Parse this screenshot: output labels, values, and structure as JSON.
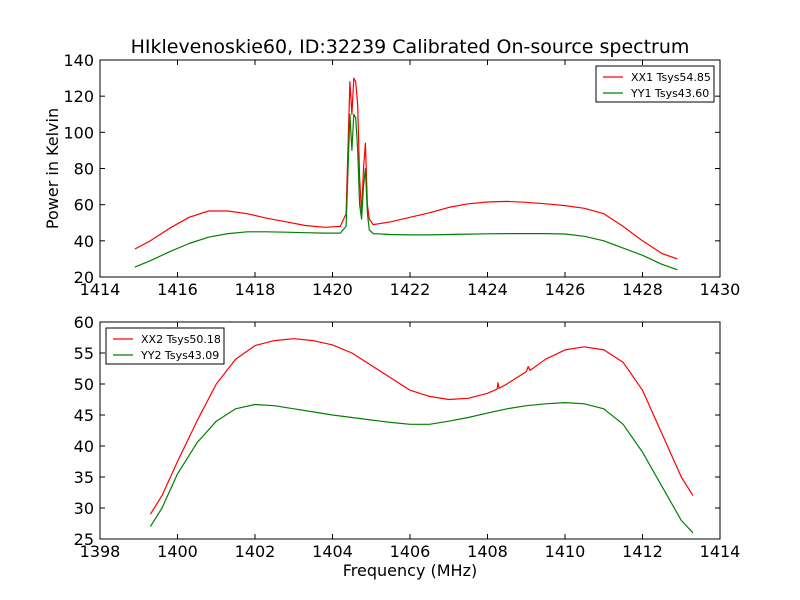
{
  "chart_data": [
    {
      "type": "line",
      "title": "HIklevenoskie60, ID:32239 Calibrated On-source spectrum",
      "xlabel": "",
      "ylabel": "Power in Kelvin",
      "xlim": [
        1414,
        1430
      ],
      "ylim": [
        20,
        140
      ],
      "xticks": [
        1414,
        1416,
        1418,
        1420,
        1422,
        1424,
        1426,
        1428,
        1430
      ],
      "yticks": [
        20,
        40,
        60,
        80,
        100,
        120,
        140
      ],
      "legend_position": "top-right",
      "series": [
        {
          "name": "XX1 Tsys54.85",
          "color": "#ff0000",
          "x": [
            1414.9,
            1415.3,
            1415.8,
            1416.3,
            1416.8,
            1417.3,
            1417.8,
            1418.3,
            1418.8,
            1419.3,
            1419.8,
            1420.2,
            1420.35,
            1420.45,
            1420.5,
            1420.55,
            1420.6,
            1420.65,
            1420.7,
            1420.75,
            1420.8,
            1420.85,
            1420.9,
            1420.95,
            1421.05,
            1421.5,
            1422.0,
            1422.5,
            1423.0,
            1423.5,
            1424.0,
            1424.5,
            1425.0,
            1425.5,
            1426.0,
            1426.5,
            1427.0,
            1427.5,
            1428.0,
            1428.5,
            1428.9
          ],
          "y": [
            35.5,
            40,
            47,
            53,
            56.5,
            56.5,
            55,
            52.5,
            50.5,
            48.5,
            47.5,
            48,
            55,
            128,
            110,
            130,
            128,
            115,
            75,
            55,
            80,
            94,
            60,
            52,
            49,
            50.5,
            53,
            55.5,
            58.5,
            60.5,
            61.5,
            61.8,
            61.3,
            60.5,
            59.5,
            58,
            55,
            48,
            40,
            33,
            30
          ]
        },
        {
          "name": "YY1 Tsys43.60",
          "color": "#008000",
          "x": [
            1414.9,
            1415.3,
            1415.8,
            1416.3,
            1416.8,
            1417.3,
            1417.8,
            1418.3,
            1418.8,
            1419.3,
            1419.8,
            1420.2,
            1420.35,
            1420.45,
            1420.5,
            1420.55,
            1420.6,
            1420.65,
            1420.7,
            1420.75,
            1420.8,
            1420.85,
            1420.9,
            1420.95,
            1421.05,
            1421.5,
            1422.0,
            1422.5,
            1423.0,
            1423.5,
            1424.0,
            1424.5,
            1425.0,
            1425.5,
            1426.0,
            1426.5,
            1427.0,
            1427.5,
            1428.0,
            1428.5,
            1428.9
          ],
          "y": [
            25.5,
            29,
            34,
            38.5,
            42,
            44,
            45,
            45,
            44.8,
            44.5,
            44.3,
            44.3,
            48,
            110,
            90,
            110,
            108,
            90,
            60,
            52,
            70,
            80,
            55,
            46,
            44,
            43.5,
            43.3,
            43.3,
            43.5,
            43.7,
            43.9,
            44,
            44,
            44,
            43.8,
            42.5,
            40,
            36,
            32,
            27,
            24
          ]
        }
      ]
    },
    {
      "type": "line",
      "title": "",
      "xlabel": "Frequency (MHz)",
      "ylabel": "",
      "xlim": [
        1398,
        1414
      ],
      "ylim": [
        25,
        60
      ],
      "xticks": [
        1398,
        1400,
        1402,
        1404,
        1406,
        1408,
        1410,
        1412,
        1414
      ],
      "yticks": [
        25,
        30,
        35,
        40,
        45,
        50,
        55,
        60
      ],
      "legend_position": "top-left",
      "series": [
        {
          "name": "XX2 Tsys50.18",
          "color": "#ff0000",
          "x": [
            1399.3,
            1399.6,
            1400.0,
            1400.5,
            1401.0,
            1401.5,
            1402.0,
            1402.5,
            1403.0,
            1403.5,
            1404.0,
            1404.5,
            1405.0,
            1405.5,
            1406.0,
            1406.5,
            1407.0,
            1407.5,
            1408.0,
            1408.25,
            1408.27,
            1408.3,
            1408.5,
            1409.0,
            1409.05,
            1409.1,
            1409.5,
            1410.0,
            1410.5,
            1411.0,
            1411.5,
            1412.0,
            1412.5,
            1413.0,
            1413.3
          ],
          "y": [
            29,
            32,
            37.5,
            44,
            50,
            54,
            56.2,
            57,
            57.3,
            57,
            56.3,
            55,
            53,
            51,
            49,
            48,
            47.5,
            47.7,
            48.5,
            49.2,
            50.2,
            49.3,
            50,
            52,
            52.8,
            52.2,
            54,
            55.5,
            56,
            55.5,
            53.5,
            49,
            42,
            35,
            32
          ]
        },
        {
          "name": "YY2 Tsys43.09",
          "color": "#008000",
          "x": [
            1399.3,
            1399.6,
            1400.0,
            1400.5,
            1401.0,
            1401.5,
            1402.0,
            1402.5,
            1403.0,
            1403.5,
            1404.0,
            1404.5,
            1405.0,
            1405.5,
            1406.0,
            1406.5,
            1407.0,
            1407.5,
            1408.0,
            1408.5,
            1409.0,
            1409.5,
            1410.0,
            1410.5,
            1411.0,
            1411.5,
            1412.0,
            1412.5,
            1413.0,
            1413.3
          ],
          "y": [
            27,
            30,
            35.5,
            40.5,
            44,
            46,
            46.7,
            46.5,
            46,
            45.5,
            45,
            44.6,
            44.2,
            43.8,
            43.5,
            43.5,
            44,
            44.6,
            45.3,
            46,
            46.5,
            46.8,
            47,
            46.8,
            46,
            43.5,
            39,
            33.5,
            28,
            26
          ]
        }
      ]
    }
  ]
}
